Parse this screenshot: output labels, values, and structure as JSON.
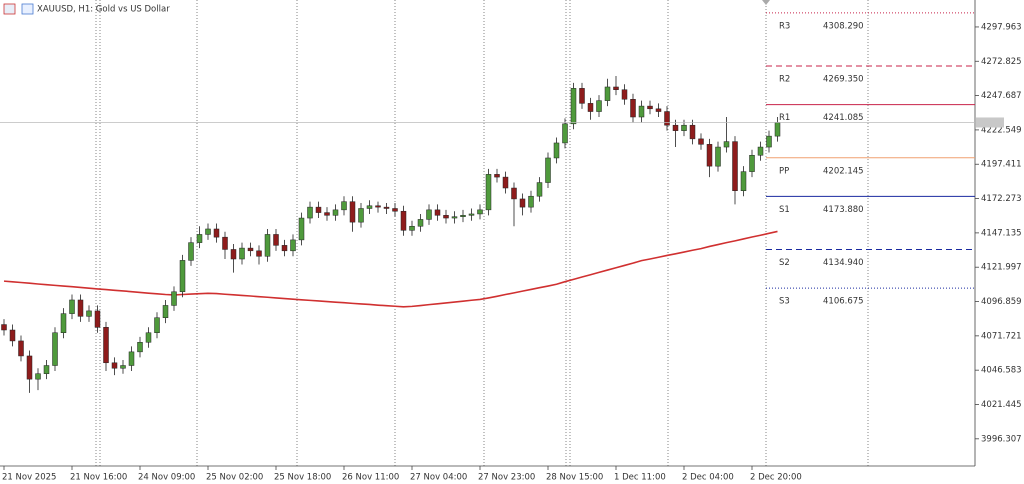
{
  "chart_data": {
    "type": "candlestick",
    "title": "XAUUSD, H1:  Gold vs US Dollar",
    "categories": [
      "21 Nov 2025",
      null,
      null,
      null,
      null,
      null,
      null,
      null,
      "21 Nov 16:00",
      null,
      null,
      null,
      null,
      null,
      null,
      null,
      "24 Nov 09:00",
      null,
      null,
      null,
      null,
      null,
      null,
      null,
      "25 Nov 02:00",
      null,
      null,
      null,
      null,
      null,
      null,
      null,
      "25 Nov 18:00",
      null,
      null,
      null,
      null,
      null,
      null,
      null,
      "26 Nov 11:00",
      null,
      null,
      null,
      null,
      null,
      null,
      null,
      "27 Nov 04:00",
      null,
      null,
      null,
      null,
      null,
      null,
      null,
      "27 Nov 23:00",
      null,
      null,
      null,
      null,
      null,
      null,
      null,
      "28 Nov 15:00",
      null,
      null,
      null,
      null,
      null,
      null,
      null,
      "1 Dec 11:00",
      null,
      null,
      null,
      null,
      null,
      null,
      null,
      "2 Dec 04:00",
      null,
      null,
      null,
      null,
      null,
      null,
      null,
      "2 Dec 20:00",
      null,
      null,
      null
    ],
    "open": [
      4080,
      4076,
      4068,
      4057,
      4040,
      4044,
      4050,
      4074,
      4088,
      4098,
      4086,
      4090,
      4078,
      4052,
      4048,
      4050,
      4060,
      4067,
      4074,
      4085,
      4094,
      4104,
      4127,
      4140,
      4146,
      4150,
      4144,
      4135,
      4128,
      4136,
      4134,
      4130,
      4146,
      4138,
      4134,
      4142,
      4158,
      4166,
      4162,
      4160,
      4164,
      4170,
      4155,
      4165,
      4167,
      4166,
      4165,
      4163,
      4149,
      4152,
      4157,
      4164,
      4160,
      4158,
      4159,
      4160,
      4161,
      4164,
      4190,
      4188,
      4180,
      4172,
      4166,
      4174,
      4184,
      4202,
      4213,
      4227,
      4253,
      4242,
      4236,
      4244,
      4254,
      4252,
      4245,
      4232,
      4240,
      4238,
      4236,
      4226,
      4222,
      4226,
      4216,
      4212,
      4196,
      4210,
      4214,
      4178,
      4192,
      4204,
      4210,
      4218
    ],
    "high": [
      4084,
      4080,
      4072,
      4061,
      4048,
      4054,
      4078,
      4092,
      4102,
      4102,
      4094,
      4094,
      4082,
      4056,
      4054,
      4064,
      4071,
      4078,
      4089,
      4098,
      4108,
      4131,
      4144,
      4152,
      4154,
      4154,
      4148,
      4139,
      4140,
      4140,
      4138,
      4150,
      4150,
      4142,
      4146,
      4162,
      4170,
      4170,
      4166,
      4168,
      4174,
      4174,
      4169,
      4171,
      4170,
      4169,
      4169,
      4167,
      4156,
      4161,
      4168,
      4168,
      4164,
      4163,
      4164,
      4165,
      4168,
      4194,
      4194,
      4192,
      4184,
      4176,
      4178,
      4188,
      4206,
      4217,
      4231,
      4257,
      4257,
      4246,
      4248,
      4260,
      4262,
      4256,
      4249,
      4244,
      4244,
      4242,
      4240,
      4230,
      4230,
      4230,
      4220,
      4216,
      4214,
      4232,
      4218,
      4196,
      4208,
      4214,
      4222,
      4232
    ],
    "low": [
      4072,
      4064,
      4053,
      4030,
      4032,
      4040,
      4046,
      4070,
      4084,
      4082,
      4082,
      4074,
      4046,
      4043,
      4044,
      4046,
      4056,
      4063,
      4070,
      4081,
      4090,
      4100,
      4123,
      4136,
      4142,
      4140,
      4128,
      4118,
      4124,
      4130,
      4124,
      4126,
      4134,
      4130,
      4130,
      4138,
      4154,
      4158,
      4156,
      4156,
      4160,
      4148,
      4151,
      4161,
      4162,
      4161,
      4159,
      4145,
      4145,
      4148,
      4153,
      4156,
      4154,
      4154,
      4155,
      4156,
      4157,
      4160,
      4184,
      4176,
      4152,
      4160,
      4162,
      4170,
      4180,
      4198,
      4209,
      4223,
      4238,
      4230,
      4232,
      4240,
      4248,
      4241,
      4228,
      4228,
      4234,
      4232,
      4222,
      4210,
      4218,
      4212,
      4208,
      4188,
      4192,
      4206,
      4168,
      4174,
      4188,
      4200,
      4206,
      4214
    ],
    "close": [
      4076,
      4068,
      4057,
      4040,
      4044,
      4050,
      4074,
      4088,
      4098,
      4086,
      4090,
      4078,
      4052,
      4048,
      4050,
      4060,
      4067,
      4074,
      4085,
      4094,
      4104,
      4127,
      4140,
      4146,
      4150,
      4144,
      4135,
      4128,
      4136,
      4134,
      4130,
      4146,
      4138,
      4134,
      4142,
      4158,
      4166,
      4162,
      4160,
      4164,
      4170,
      4155,
      4165,
      4167,
      4166,
      4165,
      4163,
      4149,
      4152,
      4157,
      4164,
      4160,
      4158,
      4159,
      4160,
      4161,
      4164,
      4190,
      4188,
      4180,
      4172,
      4166,
      4174,
      4184,
      4202,
      4213,
      4227,
      4253,
      4242,
      4236,
      4244,
      4254,
      4252,
      4245,
      4232,
      4240,
      4238,
      4236,
      4226,
      4222,
      4226,
      4216,
      4212,
      4196,
      4210,
      4214,
      4178,
      4192,
      4204,
      4210,
      4218,
      4228
    ],
    "up_color": "#4f9a3c",
    "down_color": "#8e1c1c",
    "moving_average": {
      "color": "#d03030",
      "values": [
        4111.8,
        4111.3,
        4110.8,
        4110.3,
        4109.7,
        4109.2,
        4108.7,
        4108.2,
        4107.7,
        4107.2,
        4106.6,
        4106.1,
        4105.6,
        4105.1,
        4104.6,
        4104.1,
        4103.5,
        4103.0,
        4102.5,
        4102.0,
        4101.7,
        4102.0,
        4102.3,
        4102.6,
        4102.9,
        4102.7,
        4102.2,
        4101.8,
        4101.3,
        4100.9,
        4100.4,
        4100.0,
        4099.5,
        4099.0,
        4098.6,
        4098.1,
        4097.7,
        4097.3,
        4096.8,
        4096.4,
        4096.0,
        4095.5,
        4095.1,
        4094.7,
        4094.2,
        4093.8,
        4093.4,
        4093.0,
        4093.3,
        4093.9,
        4094.6,
        4095.2,
        4095.8,
        4096.5,
        4097.1,
        4097.8,
        4098.4,
        4099.5,
        4100.7,
        4102.0,
        4103.2,
        4104.5,
        4105.7,
        4107.0,
        4108.2,
        4109.5,
        4111.4,
        4113.1,
        4114.8,
        4116.5,
        4118.2,
        4119.9,
        4121.6,
        4123.3,
        4125.0,
        4126.8,
        4128.0,
        4129.3,
        4130.6,
        4131.8,
        4133.1,
        4134.4,
        4135.6,
        4137.2,
        4138.6,
        4140.0,
        4141.3,
        4142.7,
        4144.1,
        4145.4,
        4146.8,
        4148.2
      ]
    },
    "pivots": [
      {
        "name": "R3",
        "value": 4308.29,
        "label": "4308.290",
        "color": "#c8234a",
        "style": "dotted"
      },
      {
        "name": "R2",
        "value": 4269.35,
        "label": "4269.350",
        "color": "#c8234a",
        "style": "dashed"
      },
      {
        "name": "R1",
        "value": 4241.085,
        "color": "#c8234a",
        "style": "solid"
      },
      {
        "name": "PP",
        "value": 4202.145,
        "color": "#f0a070",
        "style": "solid"
      },
      {
        "name": "S1",
        "value": 4173.88,
        "label": "4173.880",
        "color": "#1a2aa0",
        "style": "solid"
      },
      {
        "name": "S2",
        "value": 4134.94,
        "label": "4134.940",
        "color": "#1a2aa0",
        "style": "dashed"
      },
      {
        "name": "S3",
        "value": 4106.675,
        "color": "#1a2aa0",
        "style": "dotted"
      }
    ],
    "ylim": [
      3976.4,
      4317.7
    ],
    "yticks": [
      4297.963,
      4272.825,
      4247.687,
      4222.549,
      4197.411,
      4172.273,
      4147.135,
      4121.997,
      4096.859,
      4071.721,
      4046.583,
      4021.445,
      3996.307
    ]
  }
}
